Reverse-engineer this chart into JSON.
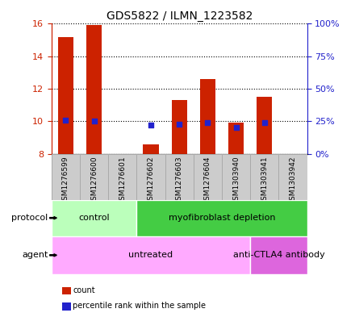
{
  "title": "GDS5822 / ILMN_1223582",
  "samples": [
    "GSM1276599",
    "GSM1276600",
    "GSM1276601",
    "GSM1276602",
    "GSM1276603",
    "GSM1276604",
    "GSM1303940",
    "GSM1303941",
    "GSM1303942"
  ],
  "count_values": [
    15.2,
    15.9,
    8.0,
    8.6,
    11.3,
    12.6,
    9.9,
    11.5,
    8.0
  ],
  "percentile_values": [
    26.0,
    25.0,
    0.0,
    22.0,
    23.0,
    24.0,
    20.0,
    24.0,
    0.0
  ],
  "ylim_left": [
    8,
    16
  ],
  "ylim_right": [
    0,
    100
  ],
  "yticks_left": [
    8,
    10,
    12,
    14,
    16
  ],
  "yticks_right": [
    0,
    25,
    50,
    75,
    100
  ],
  "bar_color": "#cc2200",
  "percentile_color": "#2222cc",
  "protocol_groups": [
    {
      "label": "control",
      "start": 0,
      "end": 3,
      "color": "#bbffbb"
    },
    {
      "label": "myofibroblast depletion",
      "start": 3,
      "end": 9,
      "color": "#44cc44"
    }
  ],
  "agent_groups": [
    {
      "label": "untreated",
      "start": 0,
      "end": 7,
      "color": "#ffaaff"
    },
    {
      "label": "anti-CTLA4 antibody",
      "start": 7,
      "end": 9,
      "color": "#dd66dd"
    }
  ],
  "legend_items": [
    {
      "label": "count",
      "color": "#cc2200"
    },
    {
      "label": "percentile rank within the sample",
      "color": "#2222cc"
    }
  ],
  "background_color": "#ffffff",
  "left_axis_color": "#cc2200",
  "right_axis_color": "#2222cc",
  "bar_width": 0.55,
  "sample_box_color": "#cccccc",
  "sample_box_edge": "#aaaaaa"
}
